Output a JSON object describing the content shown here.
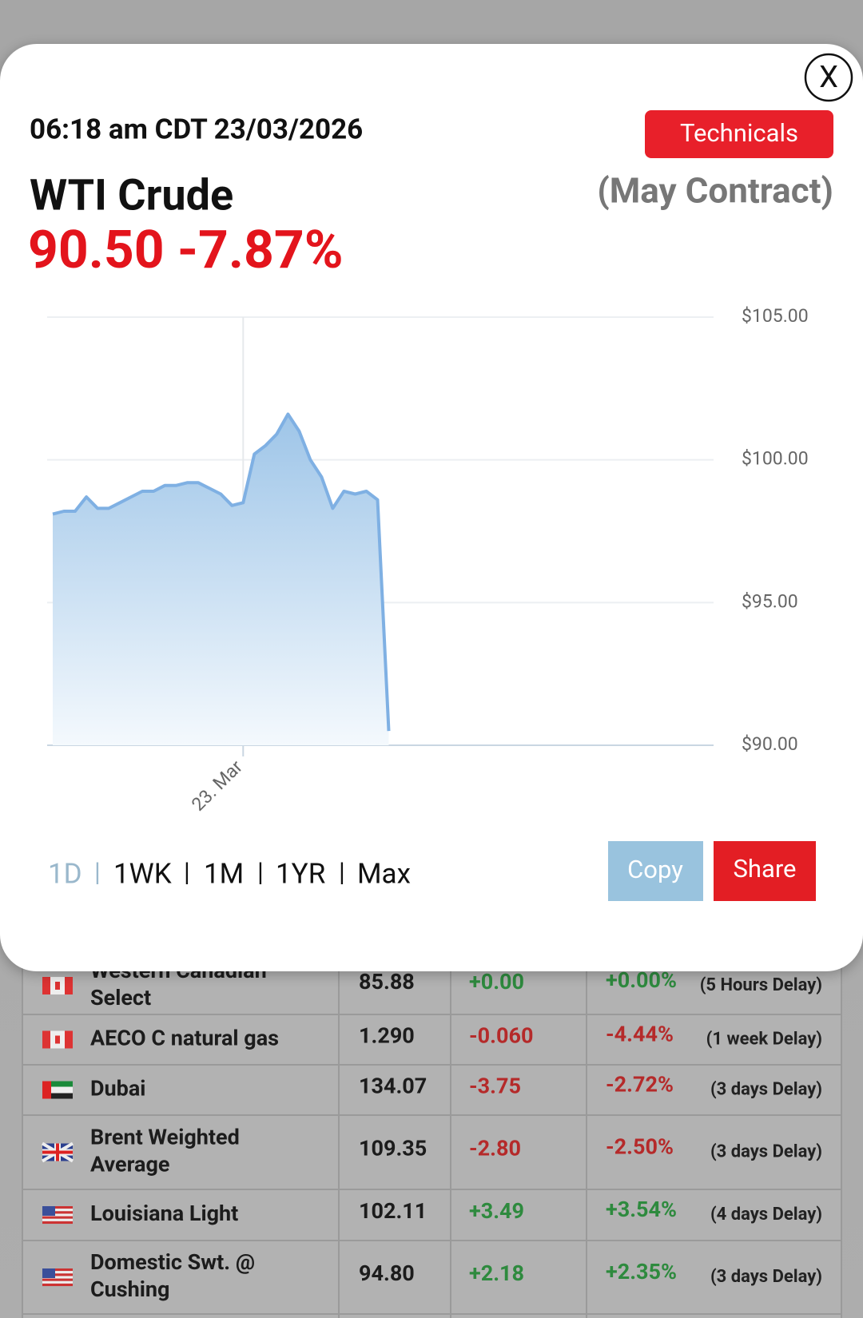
{
  "header": {
    "timestamp": "06:18 am CDT 23/03/2026",
    "technicals": "Technicals",
    "close": "X"
  },
  "instrument": {
    "name": "WTI Crude",
    "contract": "(May Contract)",
    "price": "90.50",
    "change": "-7.87%"
  },
  "chart_data": {
    "type": "area",
    "color": "#7fb0e3",
    "categories": [
      null,
      null,
      null,
      null,
      null,
      null,
      null,
      null,
      null,
      null,
      null,
      null,
      null,
      null,
      null,
      null,
      null,
      "23. Mar",
      null,
      null,
      null,
      null,
      null,
      null,
      null,
      null,
      null,
      null,
      null,
      null,
      null,
      null,
      null,
      null,
      null,
      null,
      null,
      null,
      null,
      null,
      null,
      null,
      null,
      null,
      null,
      null,
      null,
      null,
      null,
      null,
      null,
      null,
      null,
      null,
      null,
      null,
      null,
      null,
      null,
      null
    ],
    "values": [
      98.1,
      98.2,
      98.2,
      98.7,
      98.3,
      98.3,
      98.5,
      98.7,
      98.9,
      98.9,
      99.1,
      99.1,
      99.2,
      99.2,
      99.0,
      98.8,
      98.4,
      98.5,
      100.2,
      100.5,
      100.9,
      101.6,
      101.0,
      100.0,
      99.4,
      98.3,
      98.9,
      98.8,
      98.9,
      98.6,
      90.5,
      null,
      null,
      null,
      null,
      null,
      null,
      null,
      null,
      null,
      null,
      null,
      null,
      null,
      null,
      null,
      null,
      null,
      null,
      null,
      null,
      null,
      null,
      null,
      null,
      null,
      null,
      null,
      null,
      null
    ],
    "ylim": [
      90,
      105
    ],
    "yticks": [
      {
        "value": 90,
        "label": "$90.00"
      },
      {
        "value": 95,
        "label": "$95.00"
      },
      {
        "value": 100,
        "label": "$100.00"
      },
      {
        "value": 105,
        "label": "$105.00"
      }
    ],
    "grid": true
  },
  "ranges": [
    "1D",
    "1WK",
    "1M",
    "1YR",
    "Max"
  ],
  "actions": {
    "copy": "Copy",
    "share": "Share"
  },
  "table": {
    "rows": [
      {
        "name": [
          "Western Canadian",
          "Select"
        ],
        "price": "85.88",
        "change": "+0.00",
        "pct": "+0.00%",
        "delay": "(5 Hours Delay)"
      },
      {
        "name": [
          "AECO C natural gas"
        ],
        "price": "1.290",
        "change": "-0.060",
        "pct": "-4.44%",
        "delay": "(1 week Delay)"
      },
      {
        "name": [
          "Dubai"
        ],
        "price": "134.07",
        "change": "-3.75",
        "pct": "-2.72%",
        "delay": "(3 days Delay)"
      },
      {
        "name": [
          "Brent Weighted",
          "Average"
        ],
        "price": "109.35",
        "change": "-2.80",
        "pct": "-2.50%",
        "delay": "(3 days Delay)"
      },
      {
        "name": [
          "Louisiana Light"
        ],
        "price": "102.11",
        "change": "+3.49",
        "pct": "+3.54%",
        "delay": "(4 days Delay)"
      },
      {
        "name": [
          "Domestic Swt. @",
          "Cushing"
        ],
        "price": "94.80",
        "change": "+2.18",
        "pct": "+2.35%",
        "delay": "(3 days Delay)"
      }
    ]
  }
}
